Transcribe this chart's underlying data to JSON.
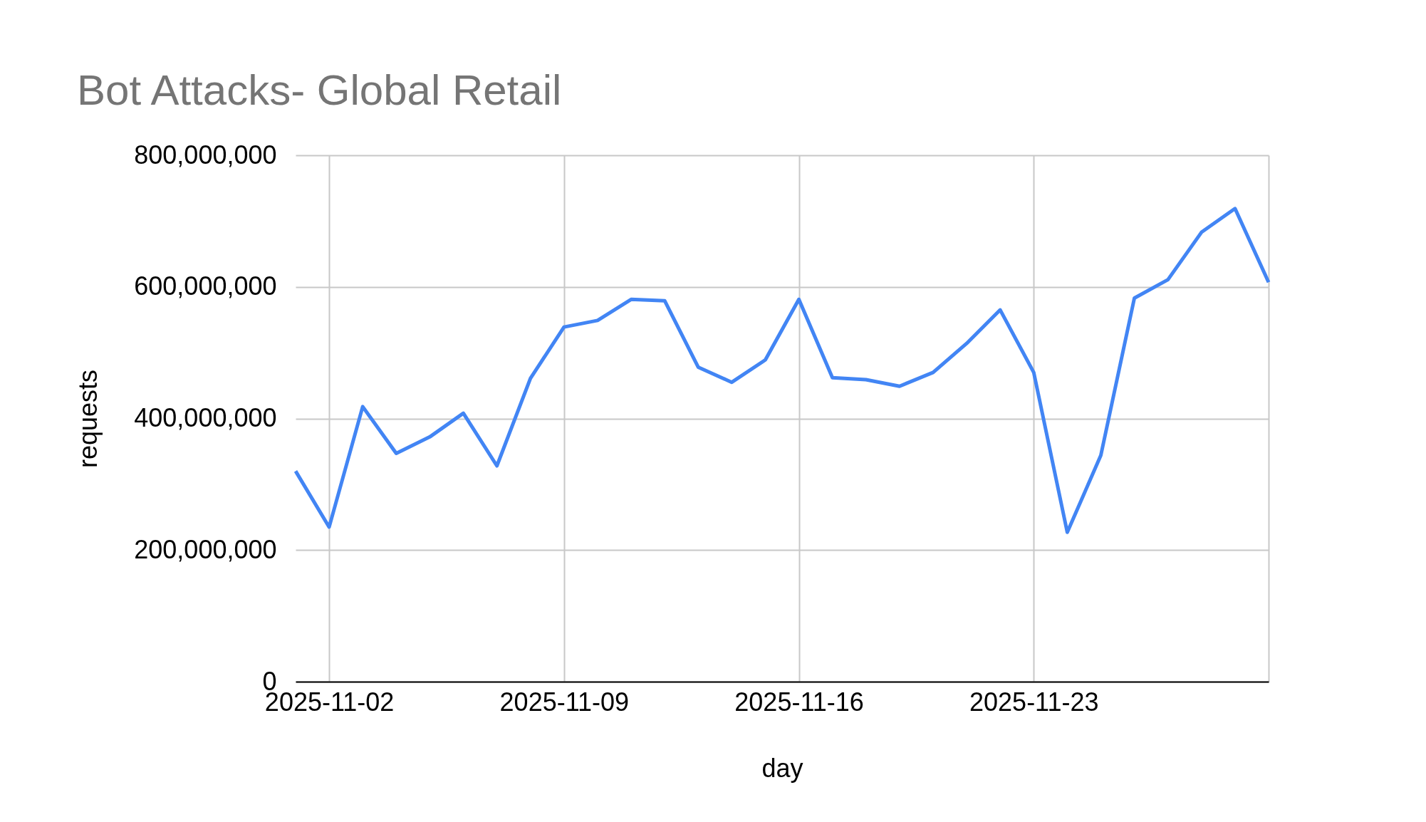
{
  "chart_data": {
    "type": "line",
    "title": "Bot Attacks- Global Retail",
    "xlabel": "day",
    "ylabel": "requests",
    "x": [
      "2025-11-01",
      "2025-11-02",
      "2025-11-03",
      "2025-11-04",
      "2025-11-05",
      "2025-11-06",
      "2025-11-07",
      "2025-11-08",
      "2025-11-09",
      "2025-11-10",
      "2025-11-11",
      "2025-11-12",
      "2025-11-13",
      "2025-11-14",
      "2025-11-15",
      "2025-11-16",
      "2025-11-17",
      "2025-11-18",
      "2025-11-19",
      "2025-11-20",
      "2025-11-21",
      "2025-11-22",
      "2025-11-23",
      "2025-11-24",
      "2025-11-25",
      "2025-11-26",
      "2025-11-27",
      "2025-11-28",
      "2025-11-29",
      "2025-11-30"
    ],
    "series": [
      {
        "color": "#4285f4",
        "values": [
          320000000,
          235000000,
          418000000,
          347000000,
          372000000,
          408000000,
          328000000,
          461000000,
          539000000,
          549000000,
          581000000,
          579000000,
          478000000,
          455000000,
          489000000,
          581000000,
          462000000,
          459000000,
          449000000,
          470000000,
          514000000,
          565000000,
          470000000,
          227000000,
          344000000,
          583000000,
          611000000,
          683000000,
          719000000,
          607000000
        ]
      }
    ],
    "xlim": [
      "2025-11-01",
      "2025-11-30"
    ],
    "xticks": [
      "2025-11-02",
      "2025-11-09",
      "2025-11-16",
      "2025-11-23",
      {
        "value": "2025-11-30",
        "label": null
      }
    ],
    "ylim": [
      0,
      800000000
    ],
    "yticks": [
      0,
      {
        "value": 200000000,
        "label": "200,000,000"
      },
      {
        "value": 400000000,
        "label": "400,000,000"
      },
      {
        "value": 600000000,
        "label": "600,000,000"
      },
      {
        "value": 800000000,
        "label": "800,000,000"
      }
    ],
    "grid": true,
    "legend": false,
    "marker": "none",
    "line_style": "solid"
  }
}
